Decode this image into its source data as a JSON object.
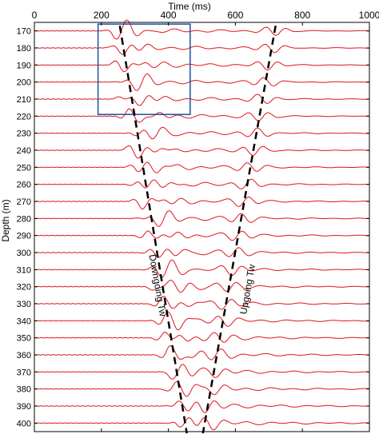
{
  "chart_data": {
    "type": "line",
    "xlabel": "Time (ms)",
    "ylabel": "Depth (m)",
    "xlim": [
      0,
      1000
    ],
    "ylim": [
      165,
      405
    ],
    "x_ticks": [
      0,
      200,
      400,
      600,
      800,
      1000
    ],
    "x_tick_labels": [
      "0",
      "200",
      "400",
      "600",
      "800",
      "1000"
    ],
    "x_axis_position": "top",
    "y_ticks": [
      170,
      180,
      190,
      200,
      210,
      220,
      230,
      240,
      250,
      260,
      270,
      280,
      290,
      300,
      310,
      320,
      330,
      340,
      350,
      360,
      370,
      380,
      390,
      400
    ],
    "y_tick_labels": [
      "170",
      "180",
      "190",
      "200",
      "210",
      "220",
      "230",
      "240",
      "250",
      "260",
      "270",
      "280",
      "290",
      "300",
      "310",
      "320",
      "330",
      "340",
      "350",
      "360",
      "370",
      "380",
      "390",
      "400"
    ],
    "y_reversed": true,
    "trace_depths": [
      170,
      180,
      190,
      200,
      210,
      220,
      230,
      240,
      250,
      260,
      270,
      280,
      290,
      300,
      310,
      320,
      330,
      340,
      350,
      360,
      370,
      380,
      390,
      400
    ],
    "trace_color": "#e0141c",
    "grid": false,
    "annotations": [
      {
        "text": "Downgoing Tw",
        "rotation_deg": 80
      },
      {
        "text": "Upgoing Tw",
        "rotation_deg": -80
      }
    ],
    "downgoing_line": {
      "x": [
        255,
        455
      ],
      "y": [
        167,
        406
      ]
    },
    "upgoing_line": {
      "x": [
        720,
        503
      ],
      "y": [
        167,
        406
      ]
    },
    "highlight_box": {
      "x": [
        190,
        465
      ],
      "y": [
        166,
        219
      ],
      "color": "#1f4e9c"
    }
  }
}
